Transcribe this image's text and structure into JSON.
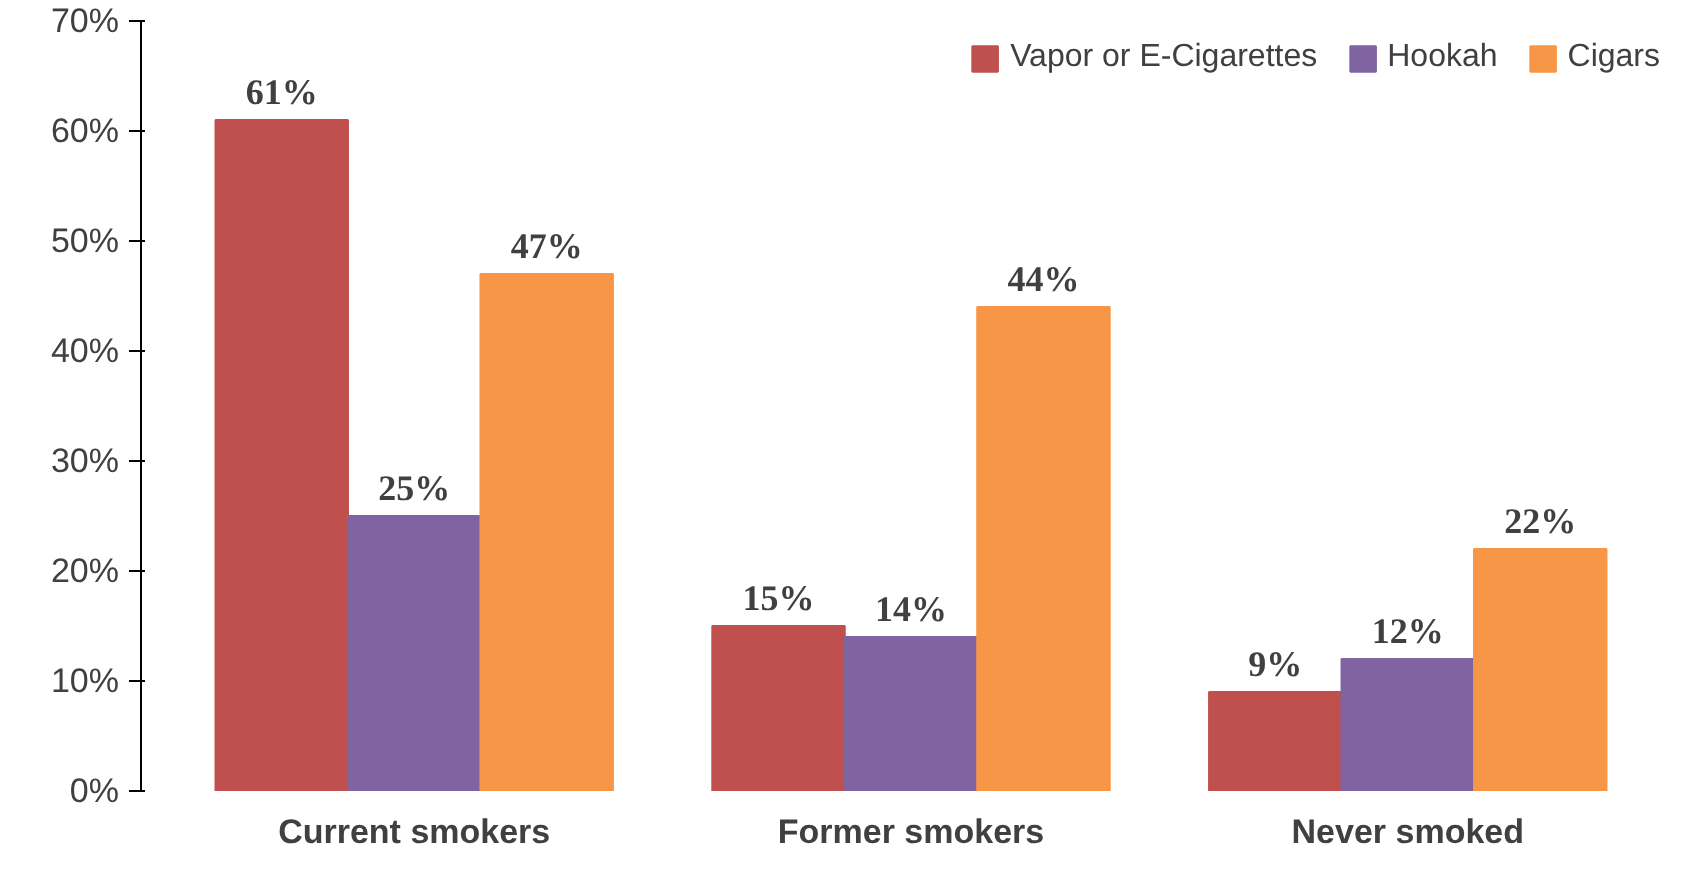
{
  "chart_data": {
    "type": "bar",
    "categories": [
      "Current smokers",
      "Former smokers",
      "Never smoked"
    ],
    "series": [
      {
        "name": "Vapor or E-Cigarettes",
        "color": "#c0504d",
        "values": [
          61,
          15,
          9
        ],
        "value_labels": [
          "61%",
          "15%",
          "9%"
        ]
      },
      {
        "name": "Hookah",
        "color": "#8064a2",
        "values": [
          25,
          14,
          12
        ],
        "value_labels": [
          "25%",
          "14%",
          "12%"
        ]
      },
      {
        "name": "Cigars",
        "color": "#f79646",
        "values": [
          47,
          44,
          22
        ],
        "value_labels": [
          "47%",
          "44%",
          "22%"
        ]
      }
    ],
    "ylim": [
      0,
      70
    ],
    "yticks": [
      {
        "value": 0,
        "label": "0%"
      },
      {
        "value": 10,
        "label": "10%"
      },
      {
        "value": 20,
        "label": "20%"
      },
      {
        "value": 30,
        "label": "30%"
      },
      {
        "value": 40,
        "label": "40%"
      },
      {
        "value": 50,
        "label": "50%"
      },
      {
        "value": 60,
        "label": "60%"
      },
      {
        "value": 70,
        "label": "70%"
      }
    ],
    "grid": false,
    "legend": "top right"
  }
}
